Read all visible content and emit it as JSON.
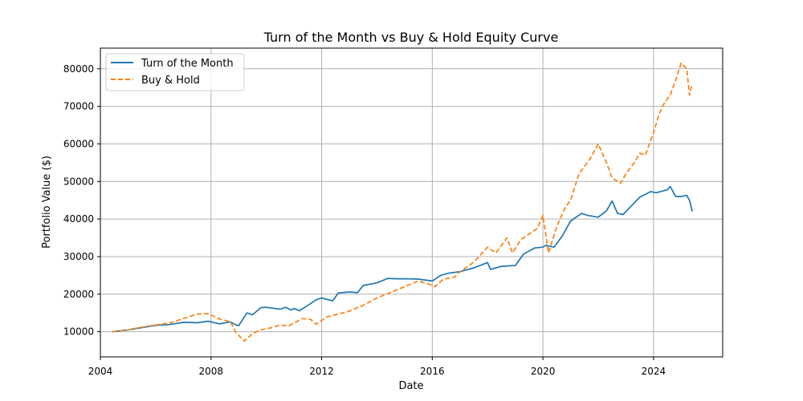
{
  "chart_data": {
    "type": "line",
    "title": "Turn of the Month vs Buy & Hold Equity Curve",
    "xlabel": "Date",
    "ylabel": "Portfolio Value ($)",
    "xlim": [
      2004.0,
      2026.5
    ],
    "ylim": [
      3300,
      85500
    ],
    "x_ticks": [
      2004,
      2008,
      2012,
      2016,
      2020,
      2024
    ],
    "x_tick_labels": [
      "2004",
      "2008",
      "2012",
      "2016",
      "2020",
      "2024"
    ],
    "y_ticks": [
      10000,
      20000,
      30000,
      40000,
      50000,
      60000,
      70000,
      80000
    ],
    "y_tick_labels": [
      "10000",
      "20000",
      "30000",
      "40000",
      "50000",
      "60000",
      "70000",
      "80000"
    ],
    "grid": true,
    "legend_position": "top-left",
    "series": [
      {
        "name": "Turn of the Month",
        "color": "#1f77b4",
        "dash": "solid",
        "points": [
          [
            2004.42,
            10000
          ],
          [
            2005.0,
            10500
          ],
          [
            2005.5,
            11100
          ],
          [
            2006.0,
            11700
          ],
          [
            2006.5,
            11900
          ],
          [
            2007.0,
            12500
          ],
          [
            2007.5,
            12400
          ],
          [
            2007.9,
            12800
          ],
          [
            2008.3,
            12100
          ],
          [
            2008.7,
            12600
          ],
          [
            2008.9,
            11800
          ],
          [
            2009.0,
            11600
          ],
          [
            2009.3,
            15000
          ],
          [
            2009.5,
            14500
          ],
          [
            2009.8,
            16400
          ],
          [
            2010.0,
            16500
          ],
          [
            2010.5,
            16000
          ],
          [
            2010.7,
            16500
          ],
          [
            2010.9,
            15800
          ],
          [
            2011.0,
            16200
          ],
          [
            2011.2,
            15600
          ],
          [
            2011.5,
            17000
          ],
          [
            2011.8,
            18500
          ],
          [
            2012.0,
            19000
          ],
          [
            2012.4,
            18200
          ],
          [
            2012.6,
            20300
          ],
          [
            2013.0,
            20600
          ],
          [
            2013.3,
            20400
          ],
          [
            2013.5,
            22300
          ],
          [
            2014.0,
            23000
          ],
          [
            2014.4,
            24200
          ],
          [
            2014.7,
            24100
          ],
          [
            2015.0,
            24100
          ],
          [
            2015.5,
            24000
          ],
          [
            2015.7,
            23800
          ],
          [
            2016.0,
            23500
          ],
          [
            2016.3,
            25000
          ],
          [
            2016.6,
            25600
          ],
          [
            2017.0,
            26000
          ],
          [
            2017.5,
            27000
          ],
          [
            2018.0,
            28400
          ],
          [
            2018.1,
            26600
          ],
          [
            2018.5,
            27400
          ],
          [
            2018.9,
            27600
          ],
          [
            2019.0,
            27600
          ],
          [
            2019.3,
            30700
          ],
          [
            2019.7,
            32300
          ],
          [
            2020.0,
            32500
          ],
          [
            2020.1,
            33000
          ],
          [
            2020.4,
            32500
          ],
          [
            2020.7,
            35500
          ],
          [
            2021.0,
            39500
          ],
          [
            2021.4,
            41500
          ],
          [
            2021.6,
            41000
          ],
          [
            2022.0,
            40500
          ],
          [
            2022.3,
            42200
          ],
          [
            2022.5,
            44800
          ],
          [
            2022.7,
            41500
          ],
          [
            2022.9,
            41200
          ],
          [
            2023.2,
            43500
          ],
          [
            2023.5,
            45800
          ],
          [
            2023.9,
            47300
          ],
          [
            2024.1,
            47000
          ],
          [
            2024.5,
            47800
          ],
          [
            2024.6,
            48700
          ],
          [
            2024.8,
            46000
          ],
          [
            2025.0,
            46000
          ],
          [
            2025.2,
            46300
          ],
          [
            2025.3,
            45000
          ],
          [
            2025.4,
            42000
          ]
        ]
      },
      {
        "name": "Buy & Hold",
        "color": "#ff7f0e",
        "dash": "dashed",
        "points": [
          [
            2004.42,
            10000
          ],
          [
            2005.0,
            10500
          ],
          [
            2005.5,
            11200
          ],
          [
            2006.0,
            11800
          ],
          [
            2006.5,
            12300
          ],
          [
            2007.0,
            13500
          ],
          [
            2007.5,
            14700
          ],
          [
            2007.9,
            14800
          ],
          [
            2008.3,
            13400
          ],
          [
            2008.7,
            12700
          ],
          [
            2008.9,
            9800
          ],
          [
            2009.2,
            7500
          ],
          [
            2009.5,
            9500
          ],
          [
            2009.8,
            10500
          ],
          [
            2010.2,
            11100
          ],
          [
            2010.5,
            11800
          ],
          [
            2010.8,
            11500
          ],
          [
            2011.3,
            13500
          ],
          [
            2011.6,
            13300
          ],
          [
            2011.8,
            12000
          ],
          [
            2012.2,
            14000
          ],
          [
            2012.5,
            14500
          ],
          [
            2013.0,
            15500
          ],
          [
            2013.5,
            17000
          ],
          [
            2014.0,
            19000
          ],
          [
            2014.5,
            20500
          ],
          [
            2015.0,
            22000
          ],
          [
            2015.5,
            23500
          ],
          [
            2015.9,
            22600
          ],
          [
            2016.1,
            22000
          ],
          [
            2016.4,
            24000
          ],
          [
            2016.8,
            24500
          ],
          [
            2017.0,
            26000
          ],
          [
            2017.5,
            28500
          ],
          [
            2018.0,
            32500
          ],
          [
            2018.3,
            31000
          ],
          [
            2018.7,
            35000
          ],
          [
            2018.9,
            31000
          ],
          [
            2019.2,
            34500
          ],
          [
            2019.5,
            36000
          ],
          [
            2019.8,
            37500
          ],
          [
            2020.0,
            41000
          ],
          [
            2020.2,
            31000
          ],
          [
            2020.5,
            38000
          ],
          [
            2020.8,
            43000
          ],
          [
            2021.0,
            45000
          ],
          [
            2021.3,
            52000
          ],
          [
            2021.7,
            56000
          ],
          [
            2022.0,
            60000
          ],
          [
            2022.3,
            55000
          ],
          [
            2022.5,
            51000
          ],
          [
            2022.8,
            49500
          ],
          [
            2023.0,
            52000
          ],
          [
            2023.3,
            55000
          ],
          [
            2023.5,
            57500
          ],
          [
            2023.7,
            57000
          ],
          [
            2024.0,
            63000
          ],
          [
            2024.2,
            68000
          ],
          [
            2024.4,
            71000
          ],
          [
            2024.6,
            73000
          ],
          [
            2024.8,
            77000
          ],
          [
            2025.0,
            81500
          ],
          [
            2025.2,
            80000
          ],
          [
            2025.3,
            73000
          ],
          [
            2025.4,
            76000
          ]
        ]
      }
    ]
  }
}
